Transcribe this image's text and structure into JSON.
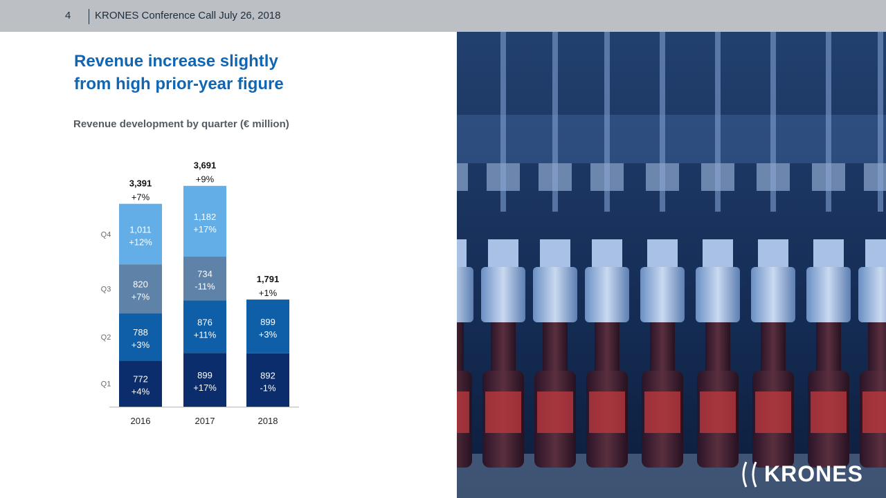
{
  "header": {
    "page_number": "4",
    "text": "KRONES Conference Call July 26, 2018"
  },
  "title_lines": [
    "Revenue increase slightly",
    "from high prior-year figure"
  ],
  "subtitle": "Revenue development by quarter (€ million)",
  "logo": {
    "text": "KRONES",
    "icon": "krones-logo-icon"
  },
  "photo": {
    "icon": "bottling-machine-photo"
  },
  "chart_data": {
    "type": "bar",
    "stacked": true,
    "categories": [
      "2016",
      "2017",
      "2018"
    ],
    "series": [
      {
        "name": "Q1",
        "color": "#0b2d6b",
        "values": [
          772,
          899,
          892
        ],
        "labels": [
          "772",
          "899",
          "892"
        ],
        "changes": [
          "+4%",
          "+17%",
          "-1%"
        ]
      },
      {
        "name": "Q2",
        "color": "#0f5fa8",
        "values": [
          788,
          876,
          899
        ],
        "labels": [
          "788",
          "876",
          "899"
        ],
        "changes": [
          "+3%",
          "+11%",
          "+3%"
        ]
      },
      {
        "name": "Q3",
        "color": "#5e82a8",
        "values": [
          820,
          734,
          null
        ],
        "labels": [
          "820",
          "734",
          ""
        ],
        "changes": [
          "+7%",
          "-11%",
          ""
        ]
      },
      {
        "name": "Q4",
        "color": "#63aee6",
        "values": [
          1011,
          1182,
          null
        ],
        "labels": [
          "1,011",
          "1,182",
          ""
        ],
        "changes": [
          "+12%",
          "+17%",
          ""
        ]
      }
    ],
    "totals": [
      {
        "value": "3,391",
        "change": "+7%"
      },
      {
        "value": "3,691",
        "change": "+9%"
      },
      {
        "value": "1,791",
        "change": "+1%"
      }
    ],
    "ylim": [
      0,
      3700
    ],
    "grid": false,
    "legend": "left"
  }
}
